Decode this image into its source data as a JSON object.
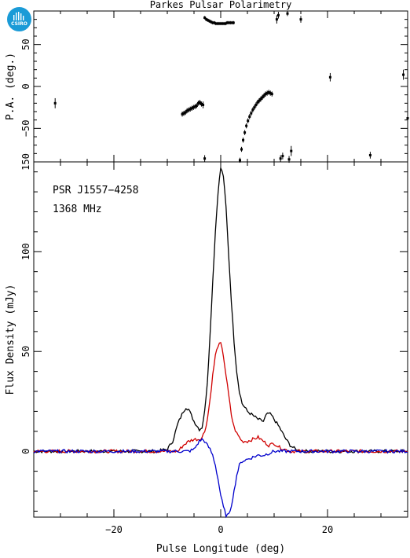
{
  "logo": {
    "text": "CSIRO",
    "color": "#1a9bd7"
  },
  "chart_data": [
    {
      "type": "scatter",
      "panel": "position-angle",
      "title": "Parkes Pulsar Polarimetry",
      "ylabel": "P.A. (deg.)",
      "xlim": [
        -35,
        35
      ],
      "ylim": [
        -90,
        90
      ],
      "yticks": [
        "50",
        "0",
        "−50",
        "150"
      ],
      "points": [
        [
          -31,
          -20,
          6
        ],
        [
          -7.2,
          -33,
          3
        ],
        [
          -6.9,
          -32,
          3
        ],
        [
          -6.6,
          -31,
          3
        ],
        [
          -6.3,
          -29,
          3
        ],
        [
          -6.0,
          -28,
          3
        ],
        [
          -5.7,
          -27,
          3
        ],
        [
          -5.4,
          -26,
          3
        ],
        [
          -5.1,
          -25,
          3
        ],
        [
          -4.8,
          -24,
          3
        ],
        [
          -4.5,
          -23,
          3
        ],
        [
          -4.2,
          -20,
          3
        ],
        [
          -3.9,
          -19,
          3
        ],
        [
          -3.6,
          -21,
          3
        ],
        [
          -3.3,
          -22,
          4
        ],
        [
          -3.0,
          -86,
          4
        ],
        [
          -3,
          82,
          2
        ],
        [
          -2.7,
          80,
          2
        ],
        [
          -2.4,
          79,
          2
        ],
        [
          -2.1,
          78,
          2
        ],
        [
          -1.8,
          77,
          2
        ],
        [
          -1.5,
          76,
          2
        ],
        [
          -1.2,
          76,
          2
        ],
        [
          -0.9,
          75,
          2
        ],
        [
          -0.6,
          75,
          2
        ],
        [
          -0.3,
          75,
          2
        ],
        [
          0,
          75,
          2
        ],
        [
          0.3,
          75,
          2
        ],
        [
          0.6,
          75,
          2
        ],
        [
          0.9,
          75,
          2
        ],
        [
          1.2,
          76,
          2
        ],
        [
          1.5,
          76,
          2
        ],
        [
          1.8,
          76,
          2
        ],
        [
          2.1,
          76,
          2
        ],
        [
          2.4,
          76,
          2
        ],
        [
          3.6,
          -88,
          3
        ],
        [
          3.9,
          -75,
          3
        ],
        [
          4.2,
          -64,
          3
        ],
        [
          4.5,
          -55,
          3
        ],
        [
          4.8,
          -47,
          3
        ],
        [
          5.1,
          -41,
          3
        ],
        [
          5.4,
          -36,
          3
        ],
        [
          5.7,
          -32,
          3
        ],
        [
          6.0,
          -28,
          3
        ],
        [
          6.3,
          -25,
          3
        ],
        [
          6.6,
          -22,
          3
        ],
        [
          6.9,
          -19,
          3
        ],
        [
          7.2,
          -17,
          3
        ],
        [
          7.5,
          -15,
          3
        ],
        [
          7.8,
          -13,
          3
        ],
        [
          8.1,
          -11,
          3
        ],
        [
          8.4,
          -9,
          3
        ],
        [
          8.7,
          -8,
          3
        ],
        [
          9.0,
          -7,
          3
        ],
        [
          9.3,
          -8,
          3
        ],
        [
          9.6,
          -9,
          3
        ],
        [
          10.5,
          80,
          5
        ],
        [
          10.8,
          85,
          4
        ],
        [
          11.2,
          -86,
          4
        ],
        [
          11.6,
          -83,
          4
        ],
        [
          12.5,
          87,
          3
        ],
        [
          12.8,
          -87,
          4
        ],
        [
          13.2,
          -77,
          6
        ],
        [
          15.0,
          80,
          4
        ],
        [
          20.5,
          11,
          5
        ],
        [
          28,
          -82,
          4
        ],
        [
          34.2,
          14,
          6
        ],
        [
          35,
          -38,
          6
        ]
      ]
    },
    {
      "type": "line",
      "panel": "profile",
      "ylabel": "Flux Density (mJy)",
      "xlabel": "Pulse Longitude (deg)",
      "xlim": [
        -35,
        35
      ],
      "ylim": [
        -33,
        145
      ],
      "xticks": [
        "−20",
        "0",
        "20"
      ],
      "yticks": [
        "0",
        "50",
        "100"
      ],
      "annotations": [
        "PSR J1557−4258",
        "1368 MHz"
      ],
      "series": [
        {
          "color": "#000000",
          "points": [
            [
              -35,
              0
            ],
            [
              -12,
              0
            ],
            [
              -10,
              1
            ],
            [
              -9,
              5
            ],
            [
              -8,
              14
            ],
            [
              -7,
              20
            ],
            [
              -6.5,
              22
            ],
            [
              -6,
              21
            ],
            [
              -5,
              15
            ],
            [
              -4,
              11
            ],
            [
              -3.5,
              12
            ],
            [
              -3,
              20
            ],
            [
              -2.5,
              35
            ],
            [
              -2,
              58
            ],
            [
              -1.5,
              85
            ],
            [
              -1,
              110
            ],
            [
              -0.5,
              130
            ],
            [
              0,
              142
            ],
            [
              0.5,
              138
            ],
            [
              1,
              122
            ],
            [
              1.5,
              98
            ],
            [
              2,
              75
            ],
            [
              2.5,
              55
            ],
            [
              3,
              40
            ],
            [
              3.5,
              30
            ],
            [
              4,
              24
            ],
            [
              5,
              20
            ],
            [
              6,
              18
            ],
            [
              7,
              16
            ],
            [
              8,
              15
            ],
            [
              8.5,
              18
            ],
            [
              9,
              19
            ],
            [
              9.5,
              18
            ],
            [
              10,
              16
            ],
            [
              11,
              12
            ],
            [
              12,
              7
            ],
            [
              13,
              3
            ],
            [
              14,
              1
            ],
            [
              15,
              0
            ],
            [
              35,
              0
            ]
          ]
        },
        {
          "color": "#d00000",
          "points": [
            [
              -35,
              0
            ],
            [
              -8,
              0
            ],
            [
              -7,
              3
            ],
            [
              -6,
              5
            ],
            [
              -5,
              6
            ],
            [
              -4,
              6
            ],
            [
              -3.5,
              7
            ],
            [
              -3,
              10
            ],
            [
              -2.5,
              16
            ],
            [
              -2,
              26
            ],
            [
              -1.5,
              38
            ],
            [
              -1,
              48
            ],
            [
              -0.5,
              53
            ],
            [
              0,
              54
            ],
            [
              0.5,
              48
            ],
            [
              1,
              38
            ],
            [
              1.5,
              28
            ],
            [
              2,
              18
            ],
            [
              2.5,
              12
            ],
            [
              3,
              9
            ],
            [
              3.5,
              7
            ],
            [
              4,
              5
            ],
            [
              5,
              5
            ],
            [
              6,
              6
            ],
            [
              7,
              7
            ],
            [
              8,
              5
            ],
            [
              9,
              3
            ],
            [
              10,
              4
            ],
            [
              11,
              2
            ],
            [
              12,
              1
            ],
            [
              13,
              0
            ],
            [
              35,
              0
            ]
          ]
        },
        {
          "color": "#0000cc",
          "points": [
            [
              -35,
              0
            ],
            [
              -6,
              0
            ],
            [
              -5,
              1
            ],
            [
              -4,
              5
            ],
            [
              -3.5,
              6
            ],
            [
              -3,
              5
            ],
            [
              -2.5,
              3
            ],
            [
              -2,
              1
            ],
            [
              -1.5,
              -2
            ],
            [
              -1,
              -7
            ],
            [
              -0.5,
              -14
            ],
            [
              0,
              -22
            ],
            [
              0.5,
              -28
            ],
            [
              1,
              -32
            ],
            [
              1.5,
              -32
            ],
            [
              2,
              -27
            ],
            [
              2.5,
              -20
            ],
            [
              3,
              -12
            ],
            [
              3.5,
              -7
            ],
            [
              4,
              -5
            ],
            [
              5,
              -4
            ],
            [
              6,
              -3
            ],
            [
              7,
              -2
            ],
            [
              8,
              -2
            ],
            [
              9,
              -1
            ],
            [
              10,
              0
            ],
            [
              35,
              0
            ]
          ]
        }
      ]
    }
  ]
}
